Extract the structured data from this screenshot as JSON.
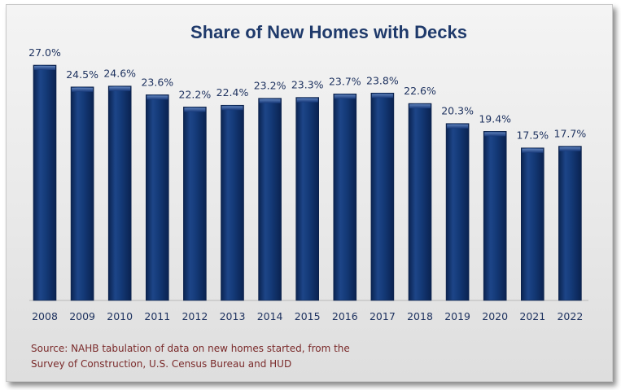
{
  "chart_data": {
    "type": "bar",
    "title": "Share of New Homes with Decks",
    "categories": [
      "2008",
      "2009",
      "2010",
      "2011",
      "2012",
      "2013",
      "2014",
      "2015",
      "2016",
      "2017",
      "2018",
      "2019",
      "2020",
      "2021",
      "2022"
    ],
    "values": [
      27.0,
      24.5,
      24.6,
      23.6,
      22.2,
      22.4,
      23.2,
      23.3,
      23.7,
      23.8,
      22.6,
      20.3,
      19.4,
      17.5,
      17.7
    ],
    "value_labels": [
      "27.0%",
      "24.5%",
      "24.6%",
      "23.6%",
      "22.2%",
      "22.4%",
      "23.2%",
      "23.3%",
      "23.7%",
      "23.8%",
      "22.6%",
      "20.3%",
      "19.4%",
      "17.5%",
      "17.7%"
    ],
    "xlabel": "",
    "ylabel": "",
    "ylim": [
      0,
      27
    ],
    "grid": false,
    "bar_color": "#0f2f66"
  },
  "footer": {
    "source_line1": "Source: NAHB tabulation of data on new homes started, from the",
    "source_line2": "Survey of Construction, U.S. Census Bureau and HUD"
  }
}
